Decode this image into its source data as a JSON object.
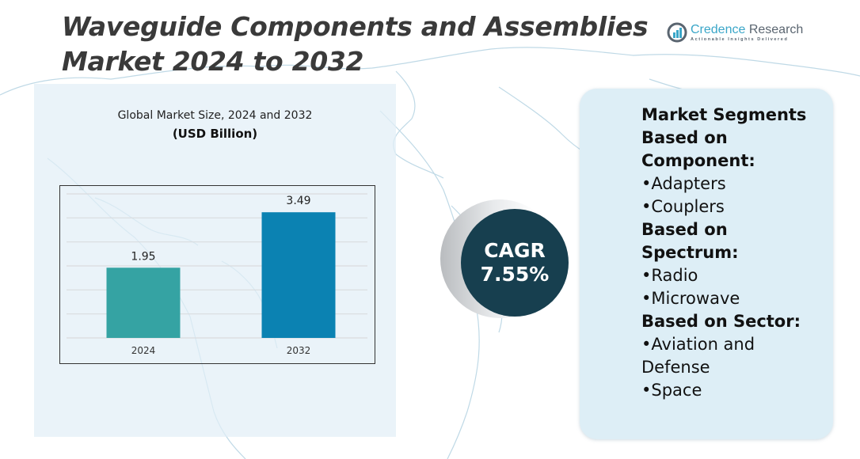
{
  "header": {
    "title_line1": "Waveguide Components and Assemblies",
    "title_line2": "Market 2024 to 2032"
  },
  "logo": {
    "name_part1": "Credence",
    "name_part2": "Research",
    "tagline": "Actionable Insights Delivered",
    "icon": "bar-chart-circle-icon"
  },
  "colors": {
    "bar_2024": "#35a3a3",
    "bar_2032": "#0b82b2",
    "cagr_circle": "#173f4f",
    "segments_panel": "#ddeef6",
    "title": "#3a3a3a"
  },
  "chart_data": {
    "type": "bar",
    "title": "Global Market Size, 2024 and 2032",
    "subtitle": "(USD Billion)",
    "categories": [
      "2024",
      "2032"
    ],
    "values": [
      1.95,
      3.49
    ],
    "data_labels": [
      "1.95",
      "3.49"
    ],
    "xlabel": "",
    "ylabel": "",
    "ylim": [
      0,
      4.0
    ],
    "grid": true,
    "gridline_count": 6,
    "legend": "none"
  },
  "cagr": {
    "label": "CAGR",
    "value": "7.55%"
  },
  "segments": [
    {
      "type": "heading",
      "text": "Market Segments"
    },
    {
      "type": "heading",
      "text": "Based on"
    },
    {
      "type": "heading",
      "text": "Component:"
    },
    {
      "type": "item",
      "text": "•Adapters"
    },
    {
      "type": "item",
      "text": "•Couplers"
    },
    {
      "type": "heading",
      "text": "Based on"
    },
    {
      "type": "heading",
      "text": "Spectrum:"
    },
    {
      "type": "item",
      "text": "•Radio"
    },
    {
      "type": "item",
      "text": "•Microwave"
    },
    {
      "type": "heading",
      "text": "Based on Sector:"
    },
    {
      "type": "item",
      "text": "•Aviation and"
    },
    {
      "type": "item",
      "text": "Defense"
    },
    {
      "type": "item",
      "text": "•Space"
    }
  ]
}
